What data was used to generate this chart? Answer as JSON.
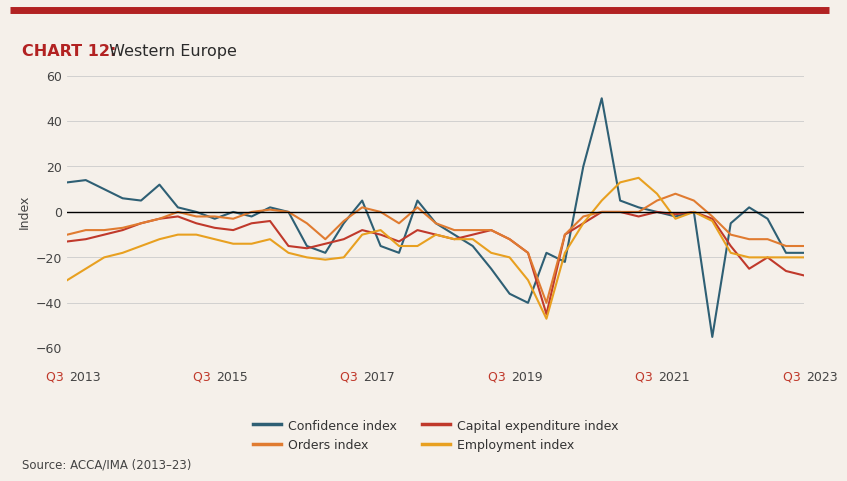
{
  "title_bold": "CHART 12:",
  "title_regular": " Western Europe",
  "ylabel": "Index",
  "source": "Source: ACCA/IMA (2013–23)",
  "top_bar_color": "#b22222",
  "background_color": "#f5f0ea",
  "ylim": [
    -60,
    60
  ],
  "yticks": [
    -60,
    -40,
    -20,
    0,
    20,
    40,
    60
  ],
  "xtick_labels": [
    "Q3 2013",
    "Q3 2015",
    "Q3 2017",
    "Q3 2019",
    "Q3 2021",
    "Q3 2023"
  ],
  "xtick_positions": [
    0,
    8,
    16,
    24,
    32,
    40
  ],
  "confidence": [
    13,
    14,
    10,
    6,
    5,
    12,
    2,
    0,
    -3,
    0,
    -2,
    2,
    0,
    -15,
    -18,
    -5,
    5,
    -15,
    -18,
    5,
    -5,
    -10,
    -15,
    -25,
    -36,
    -40,
    -18,
    -22,
    20,
    50,
    5,
    2,
    0,
    -2,
    0,
    -55,
    -5,
    2,
    -3,
    -18,
    -18
  ],
  "capex": [
    -13,
    -12,
    -10,
    -8,
    -5,
    -3,
    -2,
    -5,
    -7,
    -8,
    -5,
    -4,
    -15,
    -16,
    -14,
    -12,
    -8,
    -10,
    -13,
    -8,
    -10,
    -12,
    -10,
    -8,
    -12,
    -18,
    -45,
    -10,
    -5,
    0,
    0,
    -2,
    0,
    -1,
    0,
    -3,
    -15,
    -25,
    -20,
    -26,
    -28
  ],
  "orders": [
    -10,
    -8,
    -8,
    -7,
    -5,
    -3,
    0,
    -2,
    -2,
    -3,
    0,
    1,
    0,
    -5,
    -12,
    -4,
    2,
    0,
    -5,
    2,
    -5,
    -8,
    -8,
    -8,
    -12,
    -18,
    -40,
    -10,
    -2,
    0,
    0,
    0,
    5,
    8,
    5,
    -2,
    -10,
    -12,
    -12,
    -15,
    -15
  ],
  "employment": [
    -30,
    -25,
    -20,
    -18,
    -15,
    -12,
    -10,
    -10,
    -12,
    -14,
    -14,
    -12,
    -18,
    -20,
    -21,
    -20,
    -10,
    -8,
    -15,
    -15,
    -10,
    -12,
    -12,
    -18,
    -20,
    -30,
    -47,
    -18,
    -5,
    5,
    13,
    15,
    8,
    -3,
    0,
    -4,
    -18,
    -20,
    -20,
    -20,
    -20
  ],
  "confidence_color": "#2e5f74",
  "capex_color": "#c0392b",
  "orders_color": "#e07b30",
  "employment_color": "#e8a020"
}
